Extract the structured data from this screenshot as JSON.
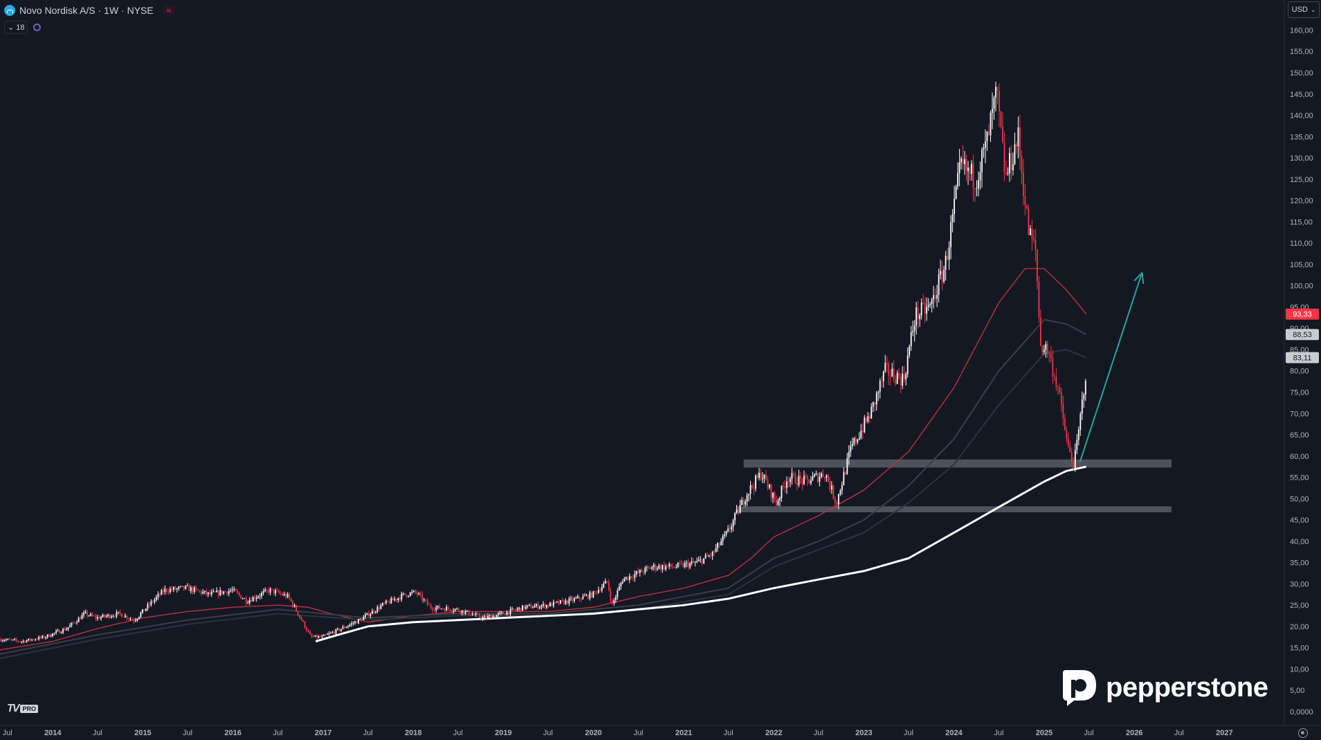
{
  "header": {
    "title": "Novo Nordisk A/S · 1W · NYSE",
    "indicator_count": "18"
  },
  "currency": {
    "label": "USD"
  },
  "branding": {
    "tv_pro": "PRO",
    "broker": "pepperstone"
  },
  "colors": {
    "background": "#141823",
    "up_candle": "#ffffff",
    "down_candle": "#f23645",
    "ma_red": "#c8323c",
    "ma_white": "#ffffff",
    "arrow": "#26a69a",
    "zone": "#9598a1"
  },
  "chart_data": {
    "type": "candlestick",
    "title": "Novo Nordisk A/S · 1W · NYSE",
    "xlabel": "",
    "ylabel": "",
    "x_range": [
      "2013-06-01",
      "2027-09-01"
    ],
    "ylim": [
      0,
      163
    ],
    "price_scale_side": "right",
    "grid": false,
    "x_ticks": [
      {
        "label": "Jul",
        "date": "2013-07-01"
      },
      {
        "label": "2014",
        "date": "2014-01-01"
      },
      {
        "label": "Jul",
        "date": "2014-07-01"
      },
      {
        "label": "2015",
        "date": "2015-01-01"
      },
      {
        "label": "Jul",
        "date": "2015-07-01"
      },
      {
        "label": "2016",
        "date": "2016-01-01"
      },
      {
        "label": "Jul",
        "date": "2016-07-01"
      },
      {
        "label": "2017",
        "date": "2017-01-01"
      },
      {
        "label": "Jul",
        "date": "2017-07-01"
      },
      {
        "label": "2018",
        "date": "2018-01-01"
      },
      {
        "label": "Jul",
        "date": "2018-07-01"
      },
      {
        "label": "2019",
        "date": "2019-01-01"
      },
      {
        "label": "Jul",
        "date": "2019-07-01"
      },
      {
        "label": "2020",
        "date": "2020-01-01"
      },
      {
        "label": "Jul",
        "date": "2020-07-01"
      },
      {
        "label": "2021",
        "date": "2021-01-01"
      },
      {
        "label": "Jul",
        "date": "2021-07-01"
      },
      {
        "label": "2022",
        "date": "2022-01-01"
      },
      {
        "label": "Jul",
        "date": "2022-07-01"
      },
      {
        "label": "2023",
        "date": "2023-01-01"
      },
      {
        "label": "Jul",
        "date": "2023-07-01"
      },
      {
        "label": "2024",
        "date": "2024-01-01"
      },
      {
        "label": "Jul",
        "date": "2024-07-01"
      },
      {
        "label": "2025",
        "date": "2025-01-01"
      },
      {
        "label": "Jul",
        "date": "2025-07-01"
      },
      {
        "label": "2026",
        "date": "2026-01-01"
      },
      {
        "label": "Jul",
        "date": "2026-07-01"
      },
      {
        "label": "2027",
        "date": "2027-01-01"
      }
    ],
    "y_ticks": [
      "0,0000",
      "5,00",
      "10,00",
      "15,00",
      "20,00",
      "25,00",
      "30,00",
      "35,00",
      "40,00",
      "45,00",
      "50,00",
      "55,00",
      "60,00",
      "65,00",
      "70,00",
      "75,00",
      "80,00",
      "85,00",
      "90,00",
      "95,00",
      "100,00",
      "105,00",
      "110,00",
      "115,00",
      "120,00",
      "125,00",
      "130,00",
      "135,00",
      "140,00",
      "145,00",
      "150,00",
      "155,00",
      "160,00"
    ],
    "y_tick_values": [
      0,
      5,
      10,
      15,
      20,
      25,
      30,
      35,
      40,
      45,
      50,
      55,
      60,
      65,
      70,
      75,
      80,
      85,
      90,
      95,
      100,
      105,
      110,
      115,
      120,
      125,
      130,
      135,
      140,
      145,
      150,
      155,
      160
    ],
    "price_anchors": [
      [
        "2013-06-01",
        17
      ],
      [
        "2013-09-01",
        16.5
      ],
      [
        "2013-12-01",
        17.5
      ],
      [
        "2014-03-01",
        19.5
      ],
      [
        "2014-05-15",
        23
      ],
      [
        "2014-07-01",
        22
      ],
      [
        "2014-10-01",
        23
      ],
      [
        "2014-12-01",
        21.5
      ],
      [
        "2015-02-15",
        26
      ],
      [
        "2015-04-01",
        28.5
      ],
      [
        "2015-07-01",
        29
      ],
      [
        "2015-10-01",
        27.5
      ],
      [
        "2016-01-01",
        28.5
      ],
      [
        "2016-03-01",
        26
      ],
      [
        "2016-06-01",
        28.5
      ],
      [
        "2016-08-15",
        27
      ],
      [
        "2016-09-15",
        24
      ],
      [
        "2016-11-15",
        17.5
      ],
      [
        "2017-01-01",
        17.5
      ],
      [
        "2017-03-01",
        19
      ],
      [
        "2017-06-01",
        21.5
      ],
      [
        "2017-09-01",
        25
      ],
      [
        "2017-12-01",
        27.5
      ],
      [
        "2018-01-15",
        28
      ],
      [
        "2018-03-15",
        24.5
      ],
      [
        "2018-07-01",
        24
      ],
      [
        "2018-10-15",
        22
      ],
      [
        "2019-01-01",
        23
      ],
      [
        "2019-04-01",
        24.5
      ],
      [
        "2019-07-01",
        25
      ],
      [
        "2019-10-01",
        26
      ],
      [
        "2020-01-01",
        27.5
      ],
      [
        "2020-03-01",
        30.5
      ],
      [
        "2020-03-20",
        25
      ],
      [
        "2020-05-01",
        31
      ],
      [
        "2020-09-01",
        34
      ],
      [
        "2020-12-01",
        34
      ],
      [
        "2021-03-01",
        35
      ],
      [
        "2021-05-01",
        37
      ],
      [
        "2021-07-01",
        42
      ],
      [
        "2021-09-15",
        51
      ],
      [
        "2021-11-15",
        56
      ],
      [
        "2022-01-15",
        49
      ],
      [
        "2022-03-01",
        55
      ],
      [
        "2022-05-15",
        54
      ],
      [
        "2022-08-01",
        56
      ],
      [
        "2022-09-15",
        49
      ],
      [
        "2022-11-15",
        62
      ],
      [
        "2023-02-01",
        70
      ],
      [
        "2023-04-01",
        80
      ],
      [
        "2023-06-15",
        78
      ],
      [
        "2023-08-01",
        93
      ],
      [
        "2023-10-01",
        95
      ],
      [
        "2023-12-01",
        105
      ],
      [
        "2024-02-01",
        128
      ],
      [
        "2024-04-01",
        125
      ],
      [
        "2024-05-15",
        133
      ],
      [
        "2024-06-25",
        145
      ],
      [
        "2024-08-01",
        125
      ],
      [
        "2024-09-20",
        135
      ],
      [
        "2024-11-01",
        113
      ],
      [
        "2024-12-01",
        108
      ],
      [
        "2024-12-20",
        86
      ],
      [
        "2025-01-20",
        85
      ],
      [
        "2025-02-10",
        80
      ],
      [
        "2025-03-01",
        76
      ],
      [
        "2025-04-10",
        62
      ],
      [
        "2025-05-05",
        58
      ],
      [
        "2025-05-25",
        66
      ],
      [
        "2025-06-10",
        74
      ],
      [
        "2025-06-20",
        79
      ]
    ],
    "series": [
      {
        "name": "",
        "color": "#c8323c",
        "points": [
          [
            "2013-06-01",
            14.5
          ],
          [
            "2014-01-01",
            16.5
          ],
          [
            "2014-07-01",
            19.5
          ],
          [
            "2015-01-01",
            22
          ],
          [
            "2015-07-01",
            23.5
          ],
          [
            "2016-01-01",
            24.5
          ],
          [
            "2016-07-01",
            25
          ],
          [
            "2016-11-01",
            24.5
          ],
          [
            "2017-02-01",
            23
          ],
          [
            "2017-07-01",
            21
          ],
          [
            "2018-01-01",
            22.5
          ],
          [
            "2018-07-01",
            23.5
          ],
          [
            "2019-01-01",
            23.5
          ],
          [
            "2019-07-01",
            23.5
          ],
          [
            "2020-01-01",
            24.5
          ],
          [
            "2020-07-01",
            27
          ],
          [
            "2021-01-01",
            29
          ],
          [
            "2021-07-01",
            32
          ],
          [
            "2021-10-01",
            36
          ],
          [
            "2022-01-01",
            41
          ],
          [
            "2022-07-01",
            46
          ],
          [
            "2023-01-01",
            52
          ],
          [
            "2023-07-01",
            61
          ],
          [
            "2024-01-01",
            76
          ],
          [
            "2024-07-01",
            96
          ],
          [
            "2024-10-15",
            104
          ],
          [
            "2025-01-01",
            104
          ],
          [
            "2025-04-01",
            99
          ],
          [
            "2025-06-20",
            93.33
          ]
        ]
      },
      {
        "name": "",
        "color": "#3a3e4a",
        "points": [
          [
            "2013-06-01",
            13.5
          ],
          [
            "2014-07-01",
            18
          ],
          [
            "2015-07-01",
            21.5
          ],
          [
            "2016-07-01",
            24
          ],
          [
            "2017-07-01",
            22
          ],
          [
            "2018-07-01",
            23
          ],
          [
            "2019-07-01",
            23
          ],
          [
            "2020-07-01",
            25
          ],
          [
            "2021-07-01",
            29
          ],
          [
            "2022-01-01",
            36
          ],
          [
            "2022-07-01",
            40
          ],
          [
            "2023-01-01",
            45
          ],
          [
            "2023-07-01",
            53
          ],
          [
            "2024-01-01",
            64
          ],
          [
            "2024-07-01",
            80
          ],
          [
            "2025-01-01",
            92
          ],
          [
            "2025-04-01",
            91
          ],
          [
            "2025-06-20",
            88.53
          ]
        ]
      },
      {
        "name": "",
        "color": "#2e323e",
        "points": [
          [
            "2013-06-01",
            12.5
          ],
          [
            "2014-07-01",
            17
          ],
          [
            "2015-07-01",
            20.5
          ],
          [
            "2016-07-01",
            23
          ],
          [
            "2017-07-01",
            21.5
          ],
          [
            "2018-07-01",
            22.5
          ],
          [
            "2019-07-01",
            22.5
          ],
          [
            "2020-07-01",
            24
          ],
          [
            "2021-07-01",
            27.5
          ],
          [
            "2022-01-01",
            34
          ],
          [
            "2022-07-01",
            38
          ],
          [
            "2023-01-01",
            42
          ],
          [
            "2023-07-01",
            49
          ],
          [
            "2024-01-01",
            58
          ],
          [
            "2024-07-01",
            72
          ],
          [
            "2025-01-01",
            84
          ],
          [
            "2025-04-01",
            85
          ],
          [
            "2025-06-20",
            83.11
          ]
        ]
      },
      {
        "name": "",
        "color": "#ffffff",
        "points": [
          [
            "2016-12-01",
            16.5
          ],
          [
            "2017-03-01",
            18
          ],
          [
            "2017-07-01",
            20
          ],
          [
            "2018-01-01",
            21
          ],
          [
            "2019-01-01",
            22
          ],
          [
            "2020-01-01",
            23
          ],
          [
            "2020-07-01",
            24
          ],
          [
            "2021-01-01",
            25
          ],
          [
            "2021-07-01",
            26.5
          ],
          [
            "2022-01-01",
            29
          ],
          [
            "2022-07-01",
            31
          ],
          [
            "2023-01-01",
            33
          ],
          [
            "2023-07-01",
            36
          ],
          [
            "2024-01-01",
            42
          ],
          [
            "2024-07-01",
            48
          ],
          [
            "2025-01-01",
            54
          ],
          [
            "2025-04-01",
            56.5
          ],
          [
            "2025-06-20",
            57.5
          ]
        ]
      }
    ],
    "price_labels": [
      {
        "text": "93,33",
        "value": 93.33,
        "color": "#f23645",
        "text_color": "#ffffff"
      },
      {
        "text": "88,53",
        "value": 88.53,
        "color": "#c9cbd1",
        "text_color": "#141823"
      },
      {
        "text": "83,11",
        "value": 83.11,
        "color": "#c9cbd1",
        "text_color": "#141823"
      }
    ],
    "zones": [
      {
        "from_date": "2021-09-01",
        "to_date": "2026-06-01",
        "y_low": 57.3,
        "y_high": 59.2
      },
      {
        "from_date": "2021-08-01",
        "to_date": "2026-06-01",
        "y_low": 46.8,
        "y_high": 48.2
      }
    ],
    "arrow": {
      "from": [
        "2025-05-25",
        58.5
      ],
      "to": [
        "2026-02-01",
        103
      ]
    }
  }
}
